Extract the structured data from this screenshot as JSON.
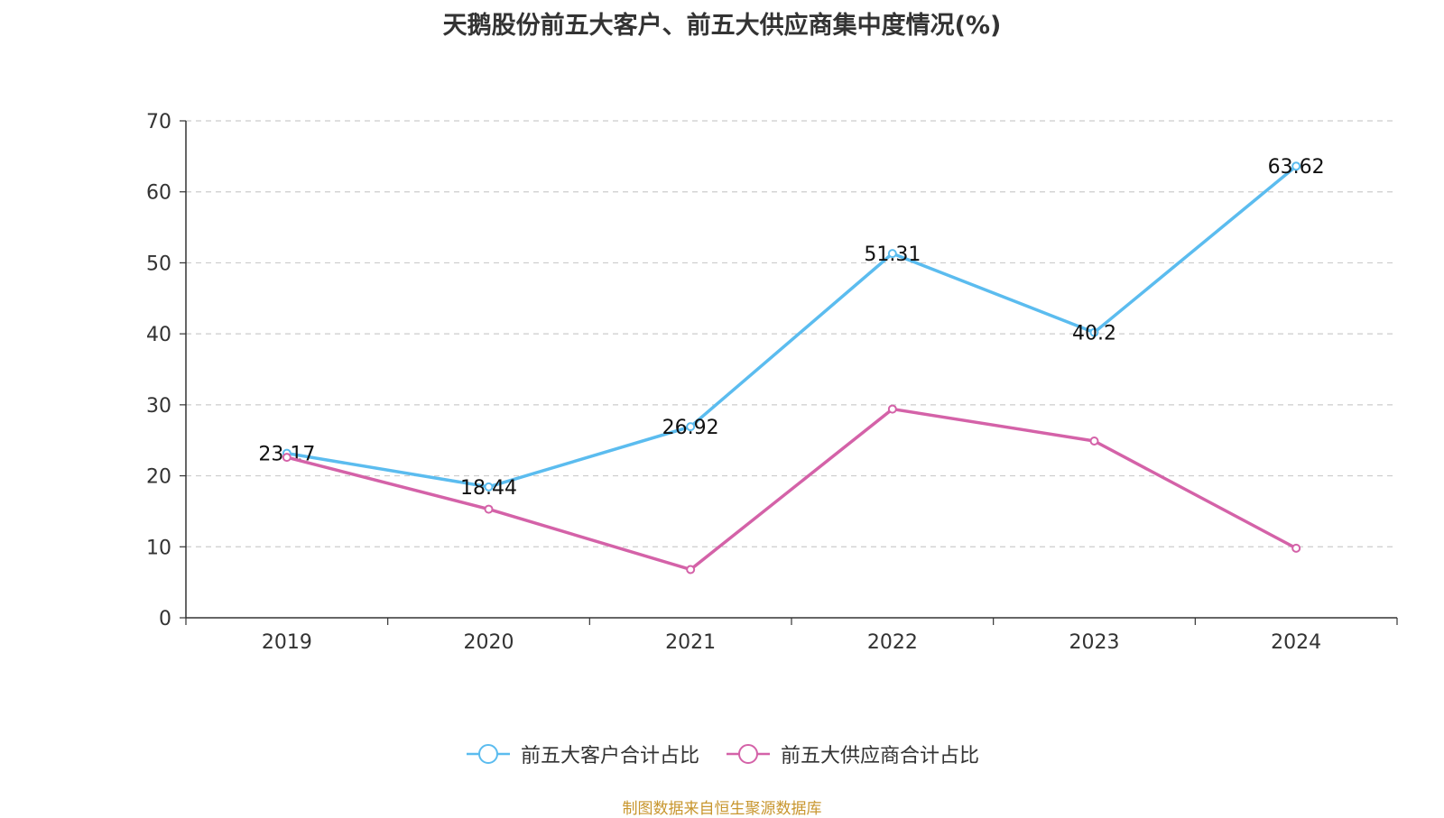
{
  "chart_data": {
    "type": "line",
    "title": "天鹅股份前五大客户、前五大供应商集中度情况(%)",
    "categories": [
      "2019",
      "2020",
      "2021",
      "2022",
      "2023",
      "2024"
    ],
    "ylim": [
      0,
      70
    ],
    "yticks": [
      0,
      10,
      20,
      30,
      40,
      50,
      60,
      70
    ],
    "grid": true,
    "legend_position": "bottom",
    "series": [
      {
        "name": "前五大客户合计占比",
        "color": "#5bbcef",
        "values": [
          23.17,
          18.44,
          26.92,
          51.31,
          40.2,
          63.62
        ],
        "labels": [
          "23.17",
          "18.44",
          "26.92",
          "51.31",
          "40.2",
          "63.62"
        ]
      },
      {
        "name": "前五大供应商合计占比",
        "color": "#d462a8",
        "values": [
          22.6,
          15.3,
          6.8,
          29.4,
          24.9,
          9.8
        ]
      }
    ]
  },
  "source_note": "制图数据来自恒生聚源数据库"
}
